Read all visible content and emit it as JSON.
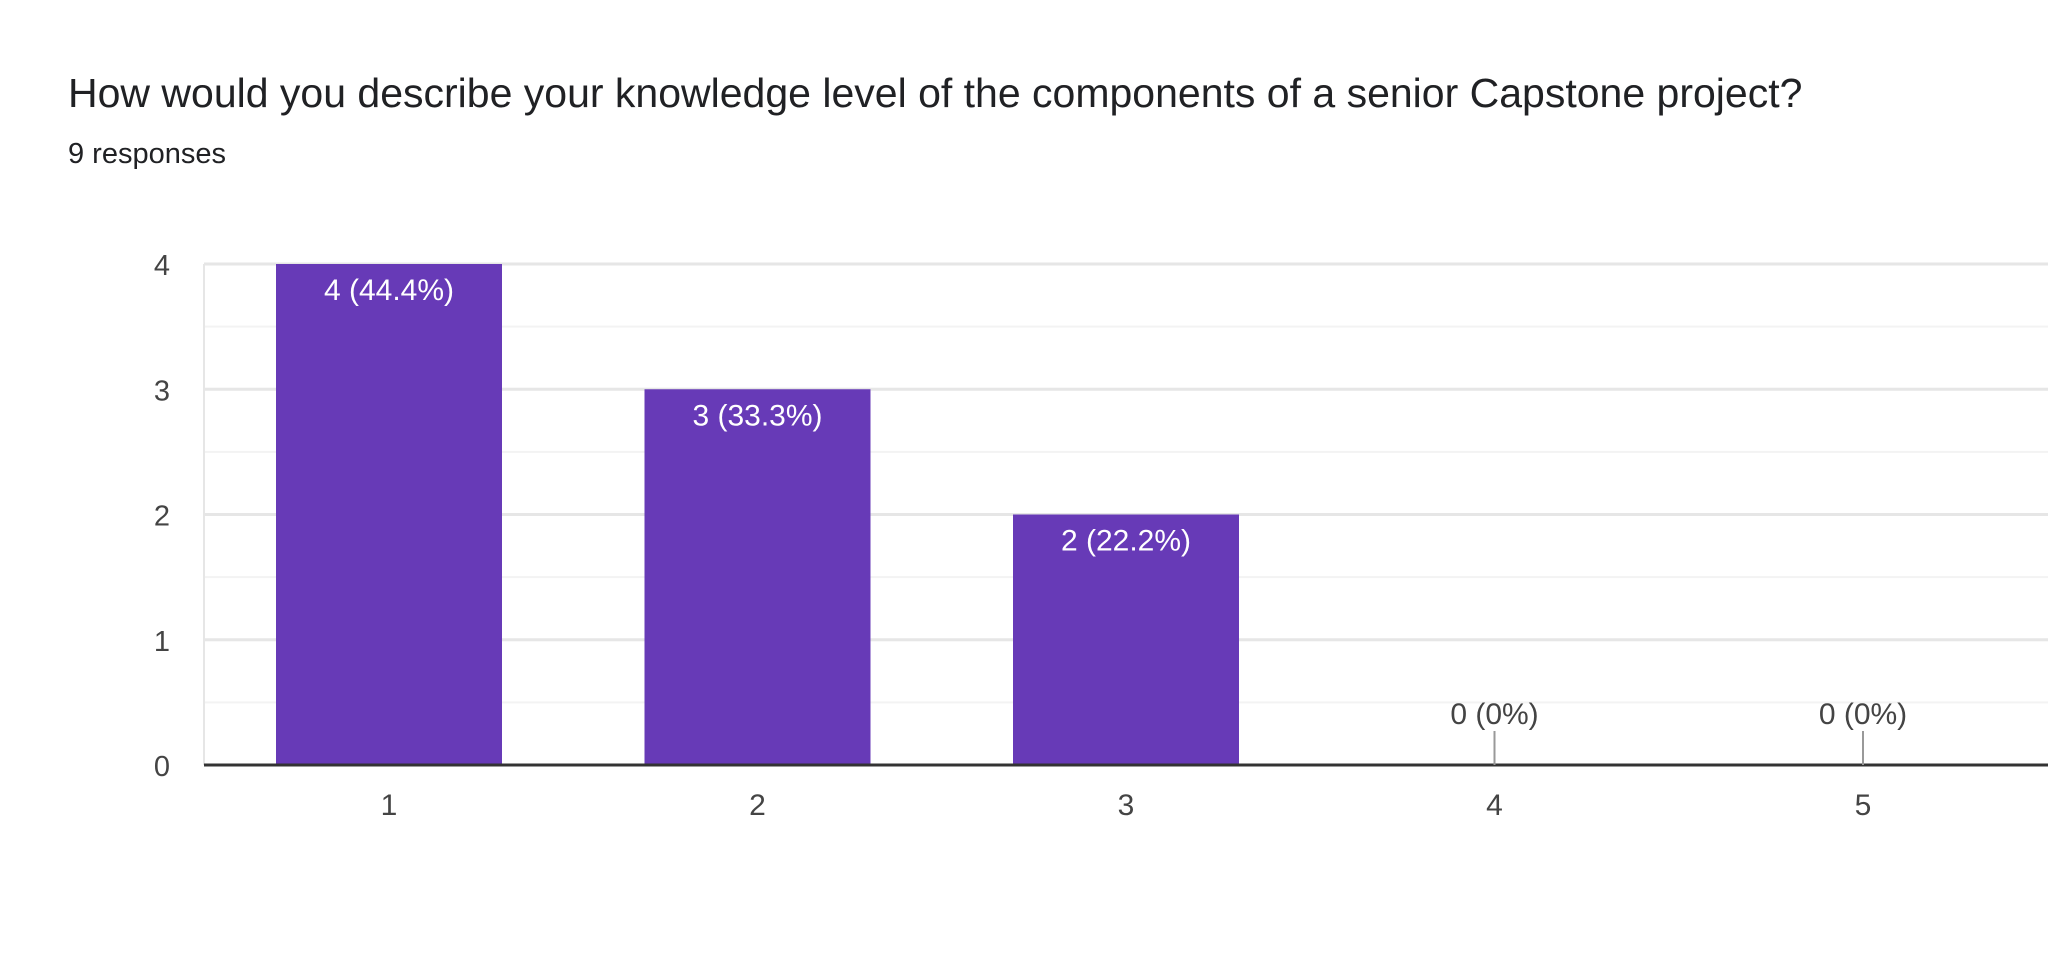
{
  "question": {
    "title": "How would you describe your knowledge level of the components of a senior Capstone project?",
    "responses_label": "9 responses"
  },
  "colors": {
    "bar": "#673ab7",
    "text": "#202124",
    "axis_text": "#444444",
    "grid_major": "#e6e6e6",
    "grid_minor": "#f3f3f3",
    "baseline": "#333333",
    "zero_tick": "#999999",
    "bar_label": "#ffffff"
  },
  "chart_data": {
    "type": "bar",
    "categories": [
      "1",
      "2",
      "3",
      "4",
      "5"
    ],
    "values": [
      4,
      3,
      2,
      0,
      0
    ],
    "data_labels": [
      "4 (44.4%)",
      "3 (33.3%)",
      "2 (22.2%)",
      "0 (0%)",
      "0 (0%)"
    ],
    "ylim": [
      0,
      4
    ],
    "y_ticks": [
      0,
      1,
      2,
      3,
      4
    ],
    "xlabel": "",
    "ylabel": "",
    "grid": true
  }
}
